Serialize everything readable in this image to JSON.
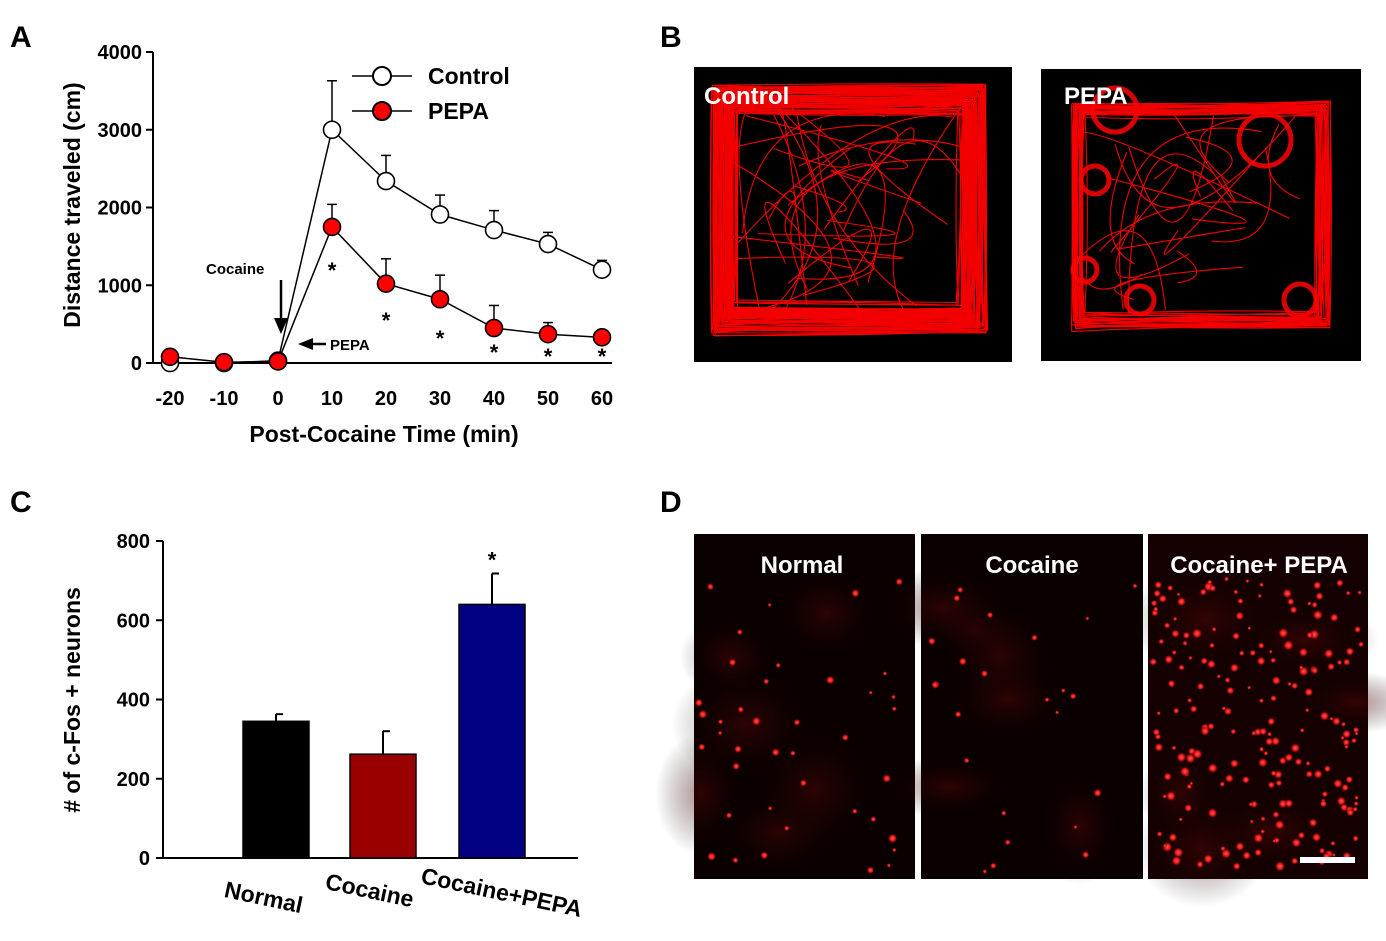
{
  "panel_letters": {
    "a": "A",
    "b": "B",
    "c": "C",
    "d": "D"
  },
  "chart_data": [
    {
      "panel": "A",
      "type": "line",
      "xlabel": "Post-Cocaine Time (min)",
      "ylabel": "Distance traveled (cm)",
      "x": [
        -20,
        -10,
        0,
        10,
        20,
        30,
        40,
        50,
        60
      ],
      "x_ticks": [
        "-20",
        "-10",
        "0",
        "10",
        "20",
        "30",
        "40",
        "50",
        "60"
      ],
      "y_ticks": [
        "0",
        "1000",
        "2000",
        "3000",
        "4000"
      ],
      "ylim": [
        0,
        4000
      ],
      "legend_position": "top-right",
      "series": [
        {
          "name": "Control",
          "marker": "open-circle",
          "color": "#ffffff",
          "values": [
            0,
            0,
            30,
            3000,
            2340,
            1910,
            1710,
            1530,
            1200
          ],
          "errors": [
            0,
            0,
            0,
            630,
            330,
            250,
            250,
            150,
            120
          ]
        },
        {
          "name": "PEPA",
          "marker": "filled-circle",
          "color": "#ff0000",
          "values": [
            80,
            10,
            20,
            1750,
            1020,
            820,
            450,
            370,
            330
          ],
          "errors": [
            0,
            0,
            0,
            290,
            320,
            310,
            290,
            150,
            0
          ]
        }
      ],
      "significance_marks": [
        {
          "x": 10,
          "label": "*"
        },
        {
          "x": 20,
          "label": "*"
        },
        {
          "x": 30,
          "label": "*"
        },
        {
          "x": 40,
          "label": "*"
        },
        {
          "x": 50,
          "label": "*"
        },
        {
          "x": 60,
          "label": "*"
        }
      ],
      "annotations": {
        "cocaine": "Cocaine",
        "pepa": "PEPA"
      }
    },
    {
      "panel": "C",
      "type": "bar",
      "ylabel": "# of c-Fos + neurons",
      "categories": [
        "Normal",
        "Cocaine",
        "Cocaine+PEPA"
      ],
      "values": [
        345,
        262,
        640
      ],
      "errors": [
        18,
        58,
        78
      ],
      "colors": [
        "#000000",
        "#990000",
        "#000080"
      ],
      "ylim": [
        0,
        800
      ],
      "y_ticks": [
        "0",
        "200",
        "400",
        "600",
        "800"
      ],
      "significance_marks": [
        {
          "category": "Cocaine+PEPA",
          "label": "*"
        }
      ]
    }
  ],
  "panel_b": {
    "labels": [
      "Control",
      "PEPA"
    ],
    "track_color": "#ff0000"
  },
  "panel_d": {
    "labels": [
      "Normal",
      "Cocaine",
      "Cocaine+ PEPA"
    ],
    "scale_bar": true
  }
}
